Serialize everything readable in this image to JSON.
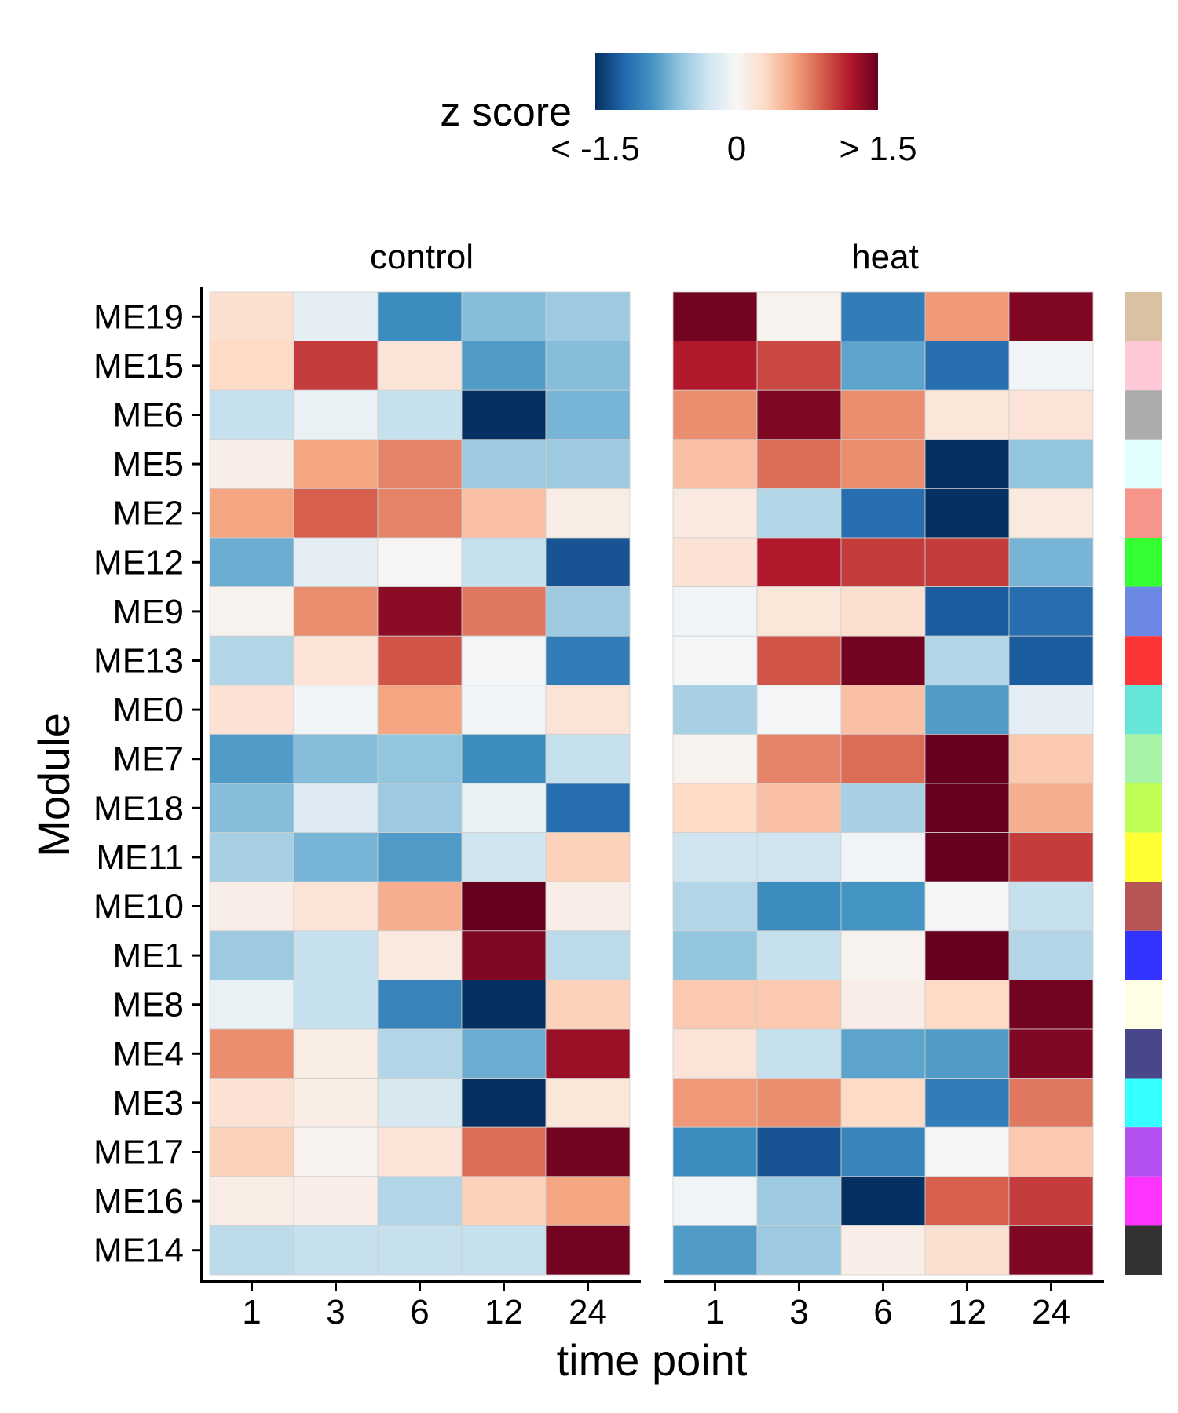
{
  "chart_data": {
    "type": "heatmap",
    "legend": {
      "title": "z score",
      "tick_labels": [
        "< -1.5",
        "0",
        "> 1.5"
      ],
      "range": [
        -1.5,
        1.5
      ],
      "placement": "top"
    },
    "xlabel": "time point",
    "ylabel": "Module",
    "x": [
      "1",
      "3",
      "6",
      "12",
      "24"
    ],
    "rows": [
      "ME19",
      "ME15",
      "ME6",
      "ME5",
      "ME2",
      "ME12",
      "ME9",
      "ME13",
      "ME0",
      "ME7",
      "ME18",
      "ME11",
      "ME10",
      "ME1",
      "ME8",
      "ME4",
      "ME3",
      "ME17",
      "ME16",
      "ME14"
    ],
    "module_colors": [
      "#d9c1a1",
      "#ffc8d6",
      "#acacac",
      "#e1ffff",
      "#f6968a",
      "#33ff33",
      "#6a88e4",
      "#fe3537",
      "#66e6d8",
      "#a8f4a6",
      "#bfff53",
      "#ffff34",
      "#b65556",
      "#3333ff",
      "#fefee5",
      "#484789",
      "#36ffff",
      "#b550f0",
      "#fd34fd",
      "#333333"
    ],
    "panels": [
      {
        "name": "control",
        "values": [
          [
            0.25,
            -0.15,
            -0.95,
            -0.65,
            -0.55
          ],
          [
            0.3,
            1.05,
            0.2,
            -0.85,
            -0.65
          ],
          [
            -0.35,
            -0.1,
            -0.35,
            -1.55,
            -0.7
          ],
          [
            0.1,
            0.6,
            0.75,
            -0.55,
            -0.55
          ],
          [
            0.6,
            0.9,
            0.75,
            0.45,
            0.12
          ],
          [
            -0.75,
            -0.15,
            0.02,
            -0.35,
            -1.3
          ],
          [
            0.05,
            0.7,
            1.35,
            0.8,
            -0.55
          ],
          [
            -0.45,
            0.2,
            0.95,
            -0.03,
            -1.05
          ],
          [
            0.22,
            -0.05,
            0.6,
            -0.05,
            0.2
          ],
          [
            -0.85,
            -0.65,
            -0.6,
            -0.95,
            -0.35
          ],
          [
            -0.65,
            -0.2,
            -0.55,
            -0.1,
            -1.15
          ],
          [
            -0.5,
            -0.7,
            -0.85,
            -0.3,
            0.35
          ],
          [
            0.1,
            0.2,
            0.55,
            1.55,
            0.1
          ],
          [
            -0.55,
            -0.35,
            0.15,
            1.4,
            -0.4
          ],
          [
            -0.1,
            -0.35,
            -1.0,
            -1.55,
            0.35
          ],
          [
            0.7,
            0.12,
            -0.45,
            -0.75,
            1.3
          ],
          [
            0.22,
            0.12,
            -0.25,
            -1.55,
            0.18
          ],
          [
            0.35,
            0.05,
            0.2,
            0.85,
            1.45
          ],
          [
            0.12,
            0.1,
            -0.45,
            0.35,
            0.6
          ],
          [
            -0.4,
            -0.35,
            -0.35,
            -0.35,
            1.45
          ]
        ]
      },
      {
        "name": "heat",
        "values": [
          [
            1.45,
            0.05,
            -1.05,
            0.65,
            1.4
          ],
          [
            1.2,
            1.0,
            -0.8,
            -1.15,
            -0.05
          ],
          [
            0.7,
            1.4,
            0.7,
            0.18,
            0.2
          ],
          [
            0.45,
            0.85,
            0.7,
            -1.55,
            -0.6
          ],
          [
            0.15,
            -0.45,
            -1.15,
            -1.55,
            0.15
          ],
          [
            0.22,
            1.2,
            1.05,
            1.05,
            -0.7
          ],
          [
            -0.05,
            0.18,
            0.25,
            -1.25,
            -1.15
          ],
          [
            -0.03,
            0.95,
            1.45,
            -0.45,
            -1.25
          ],
          [
            -0.5,
            -0.03,
            0.45,
            -0.85,
            -0.15
          ],
          [
            0.05,
            0.75,
            0.85,
            1.6,
            0.4
          ],
          [
            0.3,
            0.45,
            -0.5,
            1.6,
            0.55
          ],
          [
            -0.3,
            -0.3,
            -0.05,
            1.6,
            1.05
          ],
          [
            -0.45,
            -0.95,
            -0.9,
            -0.03,
            -0.35
          ],
          [
            -0.6,
            -0.35,
            0.05,
            1.6,
            -0.45
          ],
          [
            0.4,
            0.4,
            0.1,
            0.3,
            1.45
          ],
          [
            0.2,
            -0.35,
            -0.8,
            -0.85,
            1.4
          ],
          [
            0.65,
            0.7,
            0.3,
            -1.05,
            0.8
          ],
          [
            -0.95,
            -1.3,
            -1.0,
            -0.03,
            0.4
          ],
          [
            -0.05,
            -0.55,
            -1.55,
            0.9,
            1.05
          ],
          [
            -0.85,
            -0.55,
            0.1,
            0.25,
            1.4
          ]
        ]
      }
    ]
  }
}
